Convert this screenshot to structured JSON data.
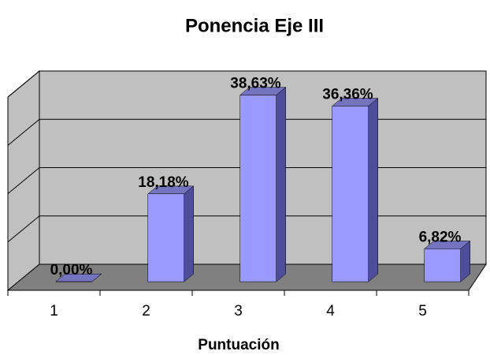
{
  "chart_data": {
    "type": "bar3d",
    "title": "Ponencia Eje III",
    "x_label": "Puntuación",
    "categories": [
      "1",
      "2",
      "3",
      "4",
      "5"
    ],
    "values": [
      0,
      18.18,
      38.63,
      36.36,
      6.82
    ],
    "value_labels": [
      "0,00%",
      "18,18%",
      "38,63%",
      "36,36%",
      "6,82%"
    ],
    "color": "#9999ff",
    "ylim": [
      0,
      40
    ],
    "yticks": [
      0,
      10,
      20,
      30,
      40
    ],
    "grid": true
  }
}
